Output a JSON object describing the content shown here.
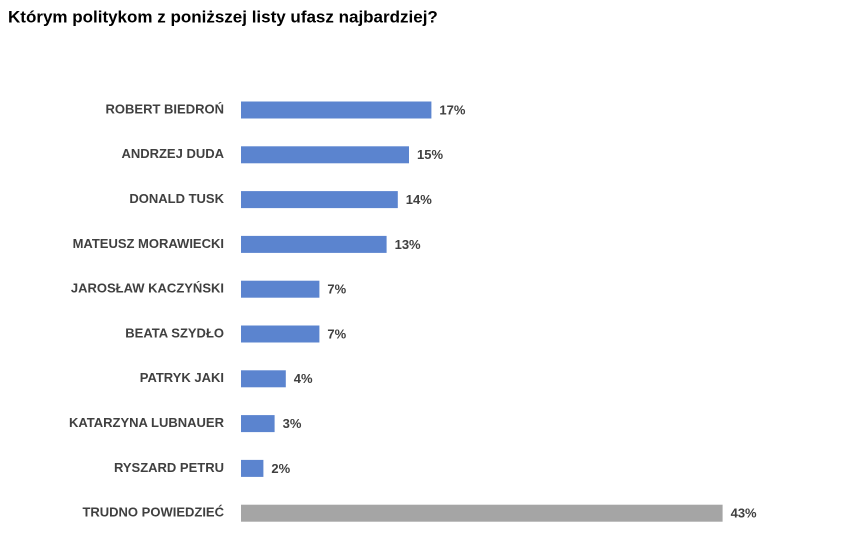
{
  "chart_data": {
    "type": "bar",
    "orientation": "horizontal",
    "title": "Którym politykom z poniższej listy ufasz najbardziej?",
    "categories": [
      "ROBERT BIEDROŃ",
      "ANDRZEJ DUDA",
      "DONALD TUSK",
      "MATEUSZ MORAWIECKI",
      "JAROSŁAW KACZYŃSKI",
      "BEATA SZYDŁO",
      "PATRYK JAKI",
      "KATARZYNA LUBNAUER",
      "RYSZARD PETRU",
      "TRUDNO POWIEDZIEĆ"
    ],
    "values": [
      17,
      15,
      14,
      13,
      7,
      7,
      4,
      3,
      2,
      43
    ],
    "value_labels": [
      "17%",
      "15%",
      "14%",
      "13%",
      "7%",
      "7%",
      "4%",
      "3%",
      "2%",
      "43%"
    ],
    "colors": [
      "#5b84cf",
      "#5b84cf",
      "#5b84cf",
      "#5b84cf",
      "#5b84cf",
      "#5b84cf",
      "#5b84cf",
      "#5b84cf",
      "#5b84cf",
      "#a5a5a5"
    ],
    "grid": false
  }
}
